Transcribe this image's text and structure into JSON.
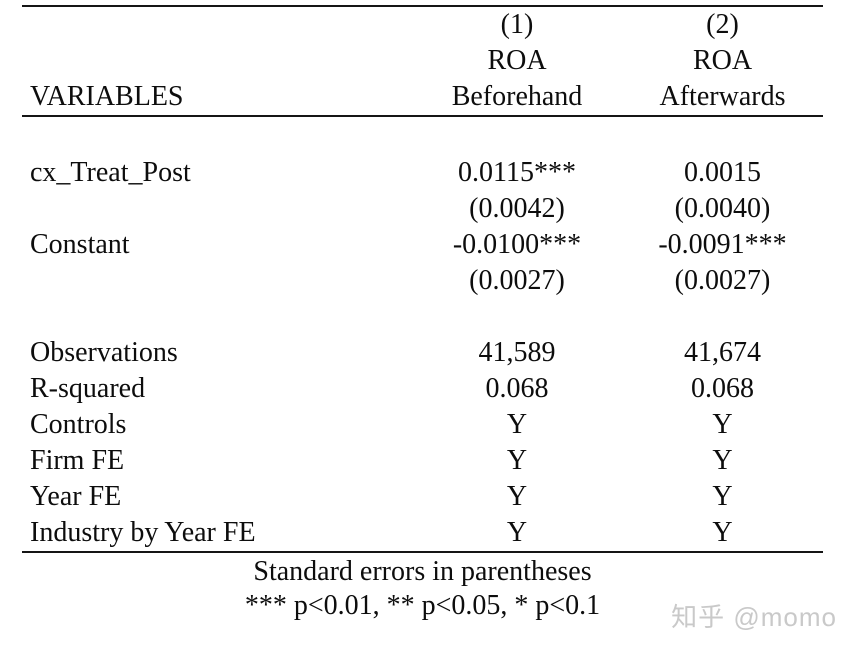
{
  "table": {
    "header": {
      "variables_label": "VARIABLES",
      "col_numbers": [
        "(1)",
        "(2)"
      ],
      "dep_vars": [
        "ROA",
        "ROA"
      ],
      "col_names": [
        "Beforehand",
        "Afterwards"
      ]
    },
    "rows": [
      {
        "label": "cx_Treat_Post",
        "c1": "0.0115***",
        "c2": "0.0015"
      },
      {
        "label": "",
        "c1": "(0.0042)",
        "c2": "(0.0040)"
      },
      {
        "label": "Constant",
        "c1": "-0.0100***",
        "c2": "-0.0091***"
      },
      {
        "label": "",
        "c1": "(0.0027)",
        "c2": "(0.0027)"
      },
      {
        "label": "Observations",
        "c1": "41,589",
        "c2": "41,674"
      },
      {
        "label": "R-squared",
        "c1": "0.068",
        "c2": "0.068"
      },
      {
        "label": "Controls",
        "c1": "Y",
        "c2": "Y"
      },
      {
        "label": "Firm FE",
        "c1": "Y",
        "c2": "Y"
      },
      {
        "label": "Year FE",
        "c1": "Y",
        "c2": "Y"
      },
      {
        "label": "Industry by Year FE",
        "c1": "Y",
        "c2": "Y"
      }
    ],
    "notes": {
      "line1": "Standard errors in parentheses",
      "line2": "*** p<0.01, ** p<0.05, * p<0.1"
    }
  },
  "watermark": "知乎 @momo",
  "colors": {
    "text": "#0d0d0d",
    "rule": "#151515",
    "watermark": "#c9c9c9",
    "background": "#ffffff"
  }
}
